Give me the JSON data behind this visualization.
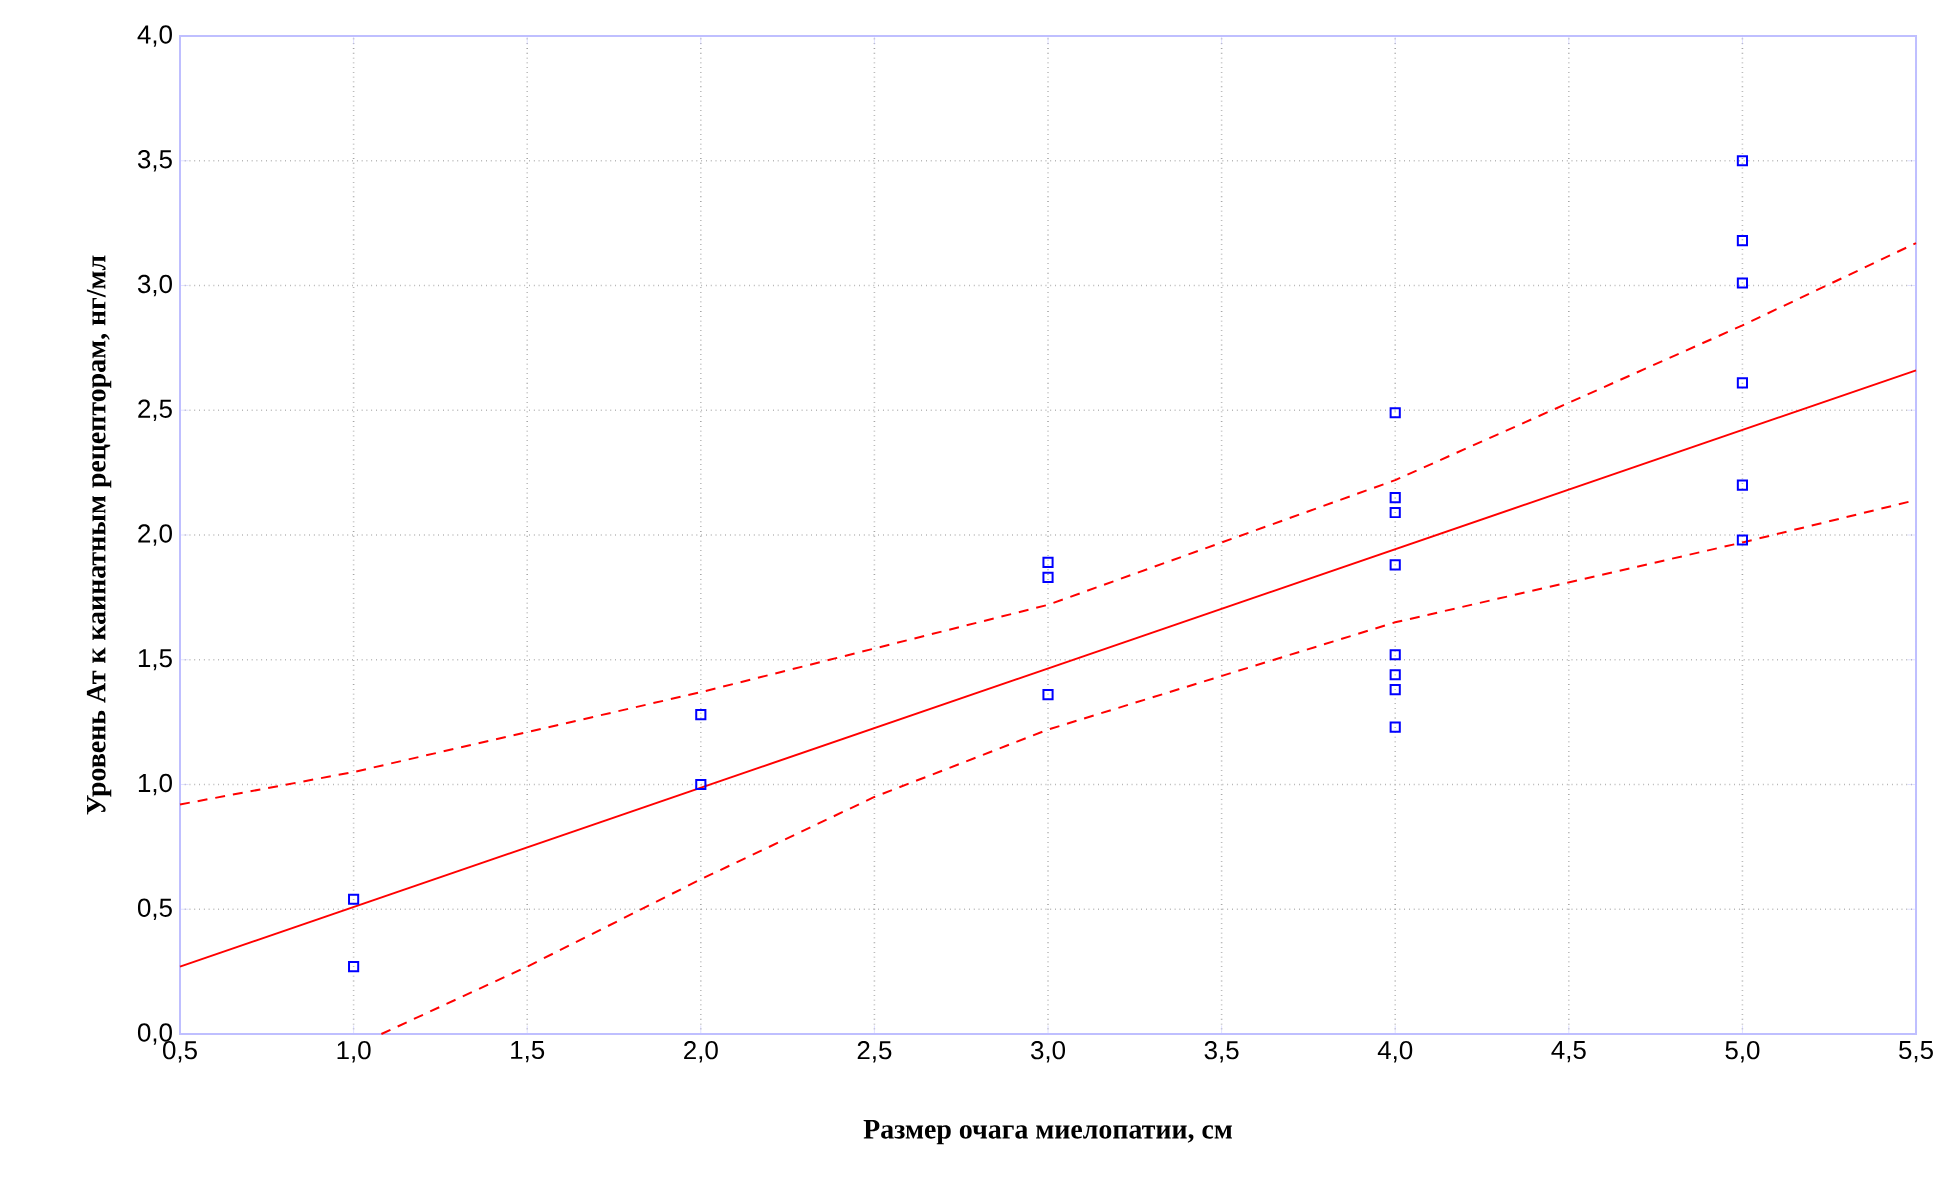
{
  "chart_data": {
    "type": "scatter",
    "xlabel": "Размер очага миелопатии, см",
    "ylabel": "Уровень Ат к каинатным рецепторам, нг/мл",
    "xlim": [
      0.5,
      5.5
    ],
    "ylim": [
      0,
      4
    ],
    "xticks": [
      {
        "value": 0.5,
        "label": "0,5"
      },
      {
        "value": 1,
        "label": "1,0"
      },
      {
        "value": 1.5,
        "label": "1,5"
      },
      {
        "value": 2,
        "label": "2,0"
      },
      {
        "value": 2.5,
        "label": "2,5"
      },
      {
        "value": 3,
        "label": "3,0"
      },
      {
        "value": 3.5,
        "label": "3,5"
      },
      {
        "value": 4,
        "label": "4,0"
      },
      {
        "value": 4.5,
        "label": "4,5"
      },
      {
        "value": 5,
        "label": "5,0"
      },
      {
        "value": 5.5,
        "label": "5,5"
      }
    ],
    "yticks": [
      {
        "value": 0,
        "label": "0,0"
      },
      {
        "value": 0.5,
        "label": "0,5"
      },
      {
        "value": 1,
        "label": "1,0"
      },
      {
        "value": 1.5,
        "label": "1,5"
      },
      {
        "value": 2,
        "label": "2,0"
      },
      {
        "value": 2.5,
        "label": "2,5"
      },
      {
        "value": 3,
        "label": "3,0"
      },
      {
        "value": 3.5,
        "label": "3,5"
      },
      {
        "value": 4,
        "label": "4,0"
      }
    ],
    "grid": true,
    "series": [
      {
        "marker": "square",
        "color": "#0000ff",
        "x": [
          1,
          1,
          2,
          2,
          3,
          3,
          3,
          4,
          4,
          4,
          4,
          4,
          4,
          4,
          4,
          5,
          5,
          5,
          5,
          5,
          5
        ],
        "values": [
          0.54,
          0.27,
          1.28,
          1.0,
          1.89,
          1.83,
          1.36,
          2.49,
          2.15,
          2.09,
          1.88,
          1.52,
          1.44,
          1.38,
          1.23,
          3.5,
          3.18,
          3.01,
          2.61,
          2.2,
          1.98
        ]
      },
      {
        "type": "line",
        "marker": "none",
        "color": "#ff0000",
        "line_style": "solid",
        "x": [
          0.5,
          5.5
        ],
        "values": [
          0.27,
          2.66
        ]
      },
      {
        "type": "line",
        "marker": "none",
        "color": "#ff0000",
        "line_style": "dashed",
        "x": [
          0.5,
          1,
          2,
          3,
          4,
          5,
          5.5
        ],
        "values": [
          0.92,
          1.05,
          1.37,
          1.72,
          2.22,
          2.84,
          3.17
        ]
      },
      {
        "type": "line",
        "marker": "none",
        "color": "#ff0000",
        "line_style": "dashed",
        "x": [
          1.08,
          1.5,
          2,
          2.5,
          3,
          4,
          5,
          5.5
        ],
        "values": [
          0,
          0.27,
          0.62,
          0.95,
          1.22,
          1.65,
          1.97,
          2.14
        ]
      }
    ]
  }
}
